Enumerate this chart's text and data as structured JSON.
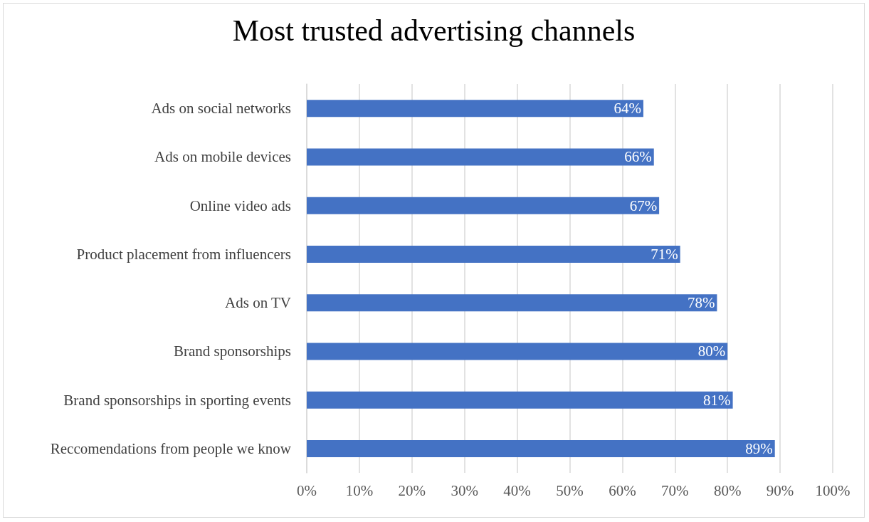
{
  "chart_data": {
    "type": "bar",
    "orientation": "horizontal",
    "title": "Most trusted advertising channels",
    "categories": [
      "Ads on social networks",
      "Ads on mobile devices",
      "Online video ads",
      "Product placement from influencers",
      "Ads on TV",
      "Brand sponsorships",
      "Brand sponsorships in sporting events",
      "Reccomendations from people we know"
    ],
    "values": [
      64,
      66,
      67,
      71,
      78,
      80,
      81,
      89
    ],
    "value_labels": [
      "64%",
      "66%",
      "67%",
      "71%",
      "78%",
      "80%",
      "81%",
      "89%"
    ],
    "color": "#4472c4",
    "xlim": [
      0,
      100
    ],
    "xticks": [
      {
        "value": 0,
        "label": "0%"
      },
      {
        "value": 10,
        "label": "10%"
      },
      {
        "value": 20,
        "label": "20%"
      },
      {
        "value": 30,
        "label": "30%"
      },
      {
        "value": 40,
        "label": "40%"
      },
      {
        "value": 50,
        "label": "50%"
      },
      {
        "value": 60,
        "label": "60%"
      },
      {
        "value": 70,
        "label": "70%"
      },
      {
        "value": 80,
        "label": "80%"
      },
      {
        "value": 90,
        "label": "90%"
      },
      {
        "value": 100,
        "label": "100%"
      }
    ],
    "grid": "x"
  }
}
